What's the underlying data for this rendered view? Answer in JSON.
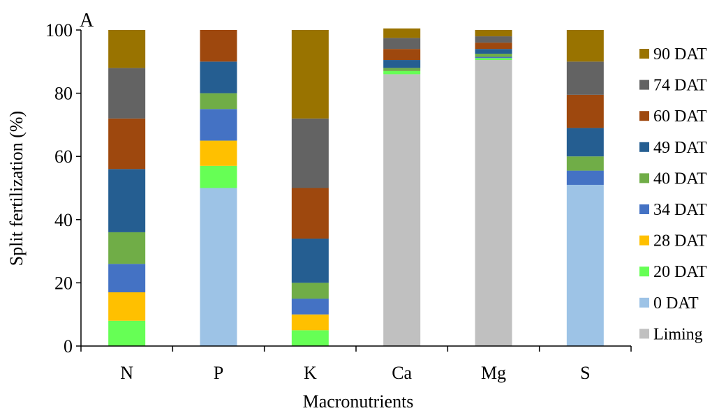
{
  "chart_data": {
    "type": "bar",
    "stacked": true,
    "panel_label": "A",
    "xlabel": "Macronutrients",
    "ylabel": "Split fertilization (%)",
    "ylim": [
      0,
      100
    ],
    "yticks": [
      0,
      20,
      40,
      60,
      80,
      100
    ],
    "grid": false,
    "legend_position": "right",
    "categories": [
      "N",
      "P",
      "K",
      "Ca",
      "Mg",
      "S"
    ],
    "series": [
      {
        "name": "Liming",
        "color": "#c0c0c0",
        "values": [
          0,
          0,
          0,
          86,
          90.5,
          0
        ]
      },
      {
        "name": "0 DAT",
        "color": "#9dc3e6",
        "values": [
          0,
          50,
          0,
          0,
          0,
          51
        ]
      },
      {
        "name": "20 DAT",
        "color": "#66ff55",
        "values": [
          8,
          7,
          5,
          1,
          0.6,
          0
        ]
      },
      {
        "name": "28 DAT",
        "color": "#ffc000",
        "values": [
          9,
          8,
          5,
          0,
          0,
          0
        ]
      },
      {
        "name": "34 DAT",
        "color": "#4472c4",
        "values": [
          9,
          10,
          5,
          0,
          0.4,
          4.5
        ]
      },
      {
        "name": "40 DAT",
        "color": "#70ad47",
        "values": [
          10,
          5,
          5,
          1,
          1,
          4.5
        ]
      },
      {
        "name": "49 DAT",
        "color": "#255e91",
        "values": [
          20,
          10,
          14,
          2.5,
          1.5,
          9
        ]
      },
      {
        "name": "60 DAT",
        "color": "#9e480e",
        "values": [
          16,
          10,
          16,
          3.5,
          2,
          10.5
        ]
      },
      {
        "name": "74 DAT",
        "color": "#636363",
        "values": [
          16,
          0,
          22,
          3.5,
          2,
          10.5
        ]
      },
      {
        "name": "90 DAT",
        "color": "#997300",
        "values": [
          12,
          0,
          28,
          3,
          2,
          10
        ]
      }
    ]
  }
}
